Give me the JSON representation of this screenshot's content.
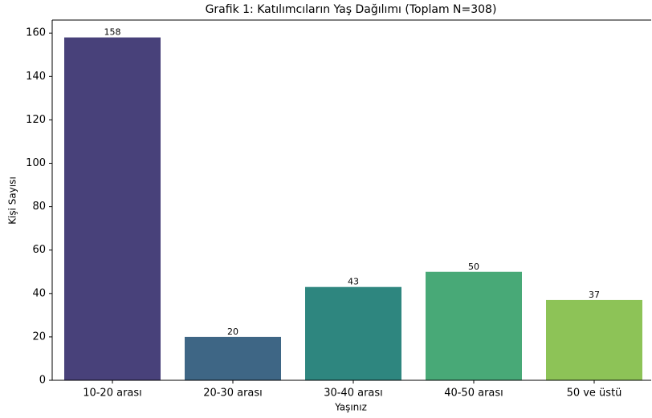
{
  "chart_data": {
    "type": "bar",
    "title": "Grafik 1: Katılımcıların Yaş Dağılımı (Toplam N=308)",
    "x_label": "Yaşınız",
    "y_label": "Kişi Sayısı",
    "categories": [
      "10-20 arası",
      "20-30 arası",
      "30-40 arası",
      "40-50 arası",
      "50 ve üstü"
    ],
    "values": [
      158,
      20,
      43,
      50,
      37
    ],
    "colors": [
      "#48417a",
      "#3e6685",
      "#2e867f",
      "#48a977",
      "#8dc357"
    ],
    "ylim": [
      0,
      166
    ],
    "yticks": [
      0,
      20,
      40,
      60,
      80,
      100,
      120,
      140,
      160
    ],
    "grid": false
  }
}
